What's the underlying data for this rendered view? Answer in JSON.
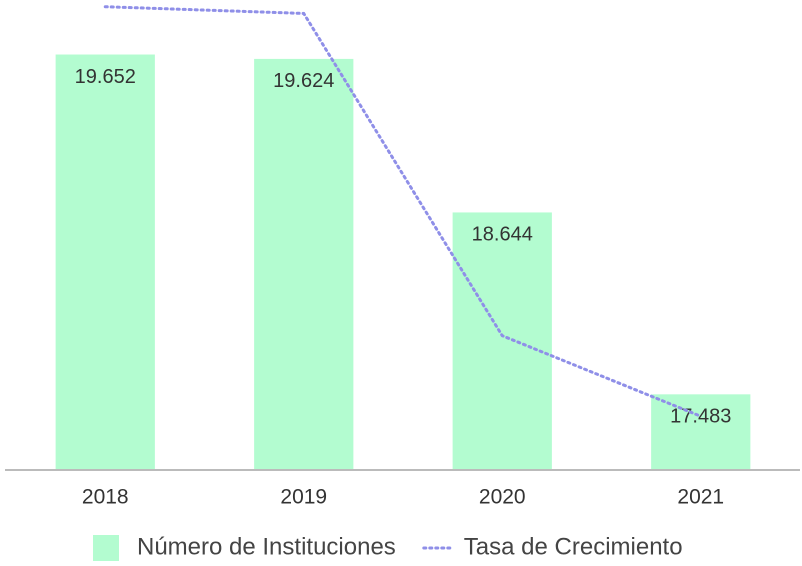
{
  "chart_data": {
    "type": "bar",
    "categories": [
      "2018",
      "2019",
      "2020",
      "2021"
    ],
    "ylim": [
      17000,
      20000
    ],
    "y2lim": [
      -7,
      0
    ],
    "series": [
      {
        "name": "Número de Instituciones",
        "type": "bar",
        "color": "#b3fcd0",
        "values": [
          19652,
          19624,
          18644,
          17483
        ],
        "value_labels": [
          "19.652",
          "19.624",
          "18.644",
          "17.483"
        ]
      },
      {
        "name": "Tasa de Crecimiento",
        "type": "line",
        "axis": "y2",
        "color": "#8f8fe8",
        "dashed": true,
        "values": [
          -0.1,
          -0.2,
          -5.0,
          -6.2
        ]
      }
    ]
  }
}
